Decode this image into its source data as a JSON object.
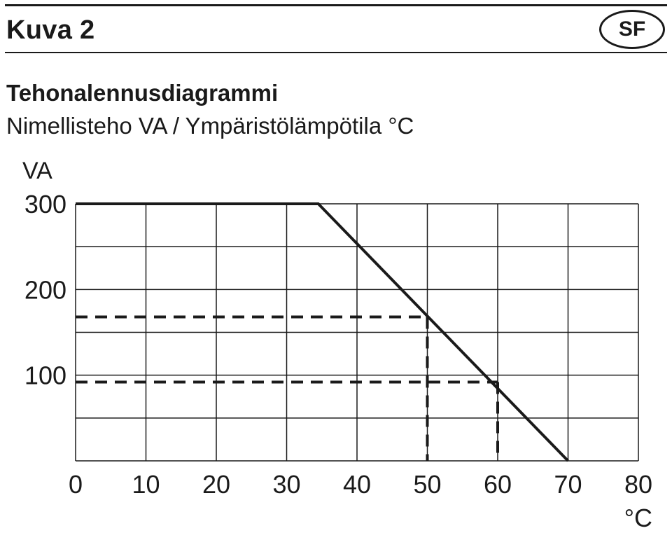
{
  "header": {
    "heading": "Kuva 2",
    "language_badge": "SF"
  },
  "colors": {
    "ink": "#1a1a1a",
    "background": "#ffffff"
  },
  "chart_data": {
    "type": "line",
    "title": "Tehonalennusdiagrammi",
    "subtitle": "Nimellisteho VA / Ympäristölämpötila °C",
    "ylabel": "VA",
    "xlabel": "°C",
    "xlim": [
      0,
      80
    ],
    "ylim": [
      0,
      300
    ],
    "x_ticks": [
      "0",
      "10",
      "20",
      "30",
      "40",
      "50",
      "60",
      "70",
      "80"
    ],
    "y_ticks": [
      "300",
      "200",
      "100"
    ],
    "x_tick_values": [
      0,
      10,
      20,
      30,
      40,
      50,
      60,
      70,
      80
    ],
    "y_tick_values": [
      300,
      200,
      100
    ],
    "grid": true,
    "grid_x": [
      0,
      10,
      20,
      30,
      40,
      50,
      60,
      70,
      80
    ],
    "grid_y": [
      0,
      50,
      100,
      150,
      200,
      250,
      300
    ],
    "series": [
      {
        "x": [
          0,
          34.5,
          70
        ],
        "y": [
          300,
          300,
          0
        ]
      }
    ],
    "reference_lines": [
      {
        "x": 50,
        "y": 168
      },
      {
        "x": 60,
        "y": 92
      }
    ]
  }
}
